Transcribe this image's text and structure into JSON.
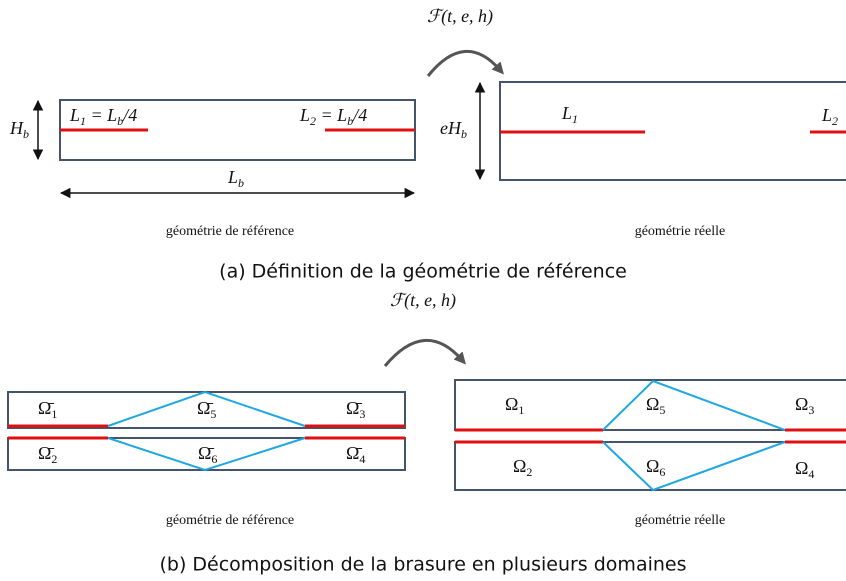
{
  "panel_a": {
    "operator": [
      "ℱ(t, e, h)"
    ],
    "reference": {
      "label_l1": [
        "L",
        "1",
        " = L",
        "b",
        "/4"
      ],
      "label_l2": [
        "L",
        "2",
        " = L",
        "b",
        "/4"
      ],
      "height": [
        "H",
        "b"
      ],
      "length": [
        "L",
        "b"
      ],
      "caption": "géométrie de référence"
    },
    "real": {
      "label_l1": [
        "L",
        "1"
      ],
      "label_l2": [
        "L",
        "2"
      ],
      "height": [
        "eH",
        "b"
      ],
      "caption": "géométrie réelle"
    },
    "caption": "(a) Définition de la géométrie de référence"
  },
  "panel_b": {
    "operator": [
      "ℱ(t, e, h)"
    ],
    "reference": {
      "domains": [
        [
          "Ω̄",
          "1"
        ],
        [
          "Ω̄",
          "5"
        ],
        [
          "Ω̄",
          "3"
        ],
        [
          "Ω̄",
          "2"
        ],
        [
          "Ω̄",
          "6"
        ],
        [
          "Ω̄",
          "4"
        ]
      ],
      "caption": "géométrie de référence"
    },
    "real": {
      "domains": [
        [
          "Ω",
          "1"
        ],
        [
          "Ω",
          "5"
        ],
        [
          "Ω",
          "3"
        ],
        [
          "Ω",
          "2"
        ],
        [
          "Ω",
          "6"
        ],
        [
          "Ω",
          "4"
        ]
      ],
      "caption": "géométrie réelle"
    },
    "caption": "(b) Décomposition de la brasure en plusieurs domaines"
  }
}
